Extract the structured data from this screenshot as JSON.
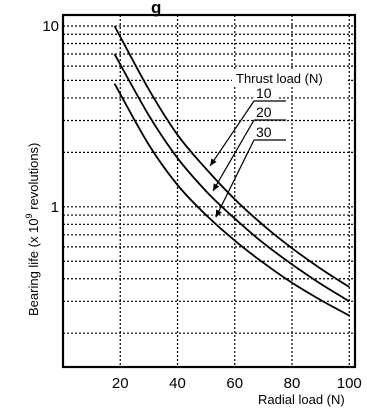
{
  "chart_data": {
    "type": "line",
    "title_fragment": "g",
    "xlabel": "Radial load (N)",
    "ylabel_main": "Bearing life (x 10",
    "ylabel_sup": "9",
    "ylabel_tail": " revolutions)",
    "x_scale": "linear",
    "y_scale": "log",
    "xlim": [
      0,
      102
    ],
    "ylim": [
      0.13,
      11.5
    ],
    "x_ticks": [
      20,
      40,
      60,
      80,
      100
    ],
    "y_tick_labels": [
      {
        "value": 1,
        "label": "1"
      },
      {
        "value": 10,
        "label": "10"
      }
    ],
    "grid": true,
    "legend_title": "Thrust load (N)",
    "legend_placement": "top-right",
    "series": [
      {
        "name": "10",
        "points": [
          [
            18,
            10.0
          ],
          [
            30,
            4.45
          ],
          [
            40,
            2.5
          ],
          [
            50,
            1.62
          ],
          [
            60,
            1.1
          ],
          [
            70,
            0.79
          ],
          [
            80,
            0.59
          ],
          [
            90,
            0.455
          ],
          [
            100,
            0.36
          ]
        ]
      },
      {
        "name": "20",
        "points": [
          [
            18,
            7.0
          ],
          [
            30,
            3.2
          ],
          [
            40,
            1.86
          ],
          [
            50,
            1.22
          ],
          [
            60,
            0.86
          ],
          [
            70,
            0.63
          ],
          [
            80,
            0.48
          ],
          [
            90,
            0.375
          ],
          [
            100,
            0.3
          ]
        ]
      },
      {
        "name": "30",
        "points": [
          [
            18,
            4.8
          ],
          [
            30,
            2.2
          ],
          [
            40,
            1.32
          ],
          [
            50,
            0.9
          ],
          [
            60,
            0.65
          ],
          [
            70,
            0.49
          ],
          [
            80,
            0.38
          ],
          [
            90,
            0.305
          ],
          [
            100,
            0.25
          ]
        ]
      }
    ]
  }
}
